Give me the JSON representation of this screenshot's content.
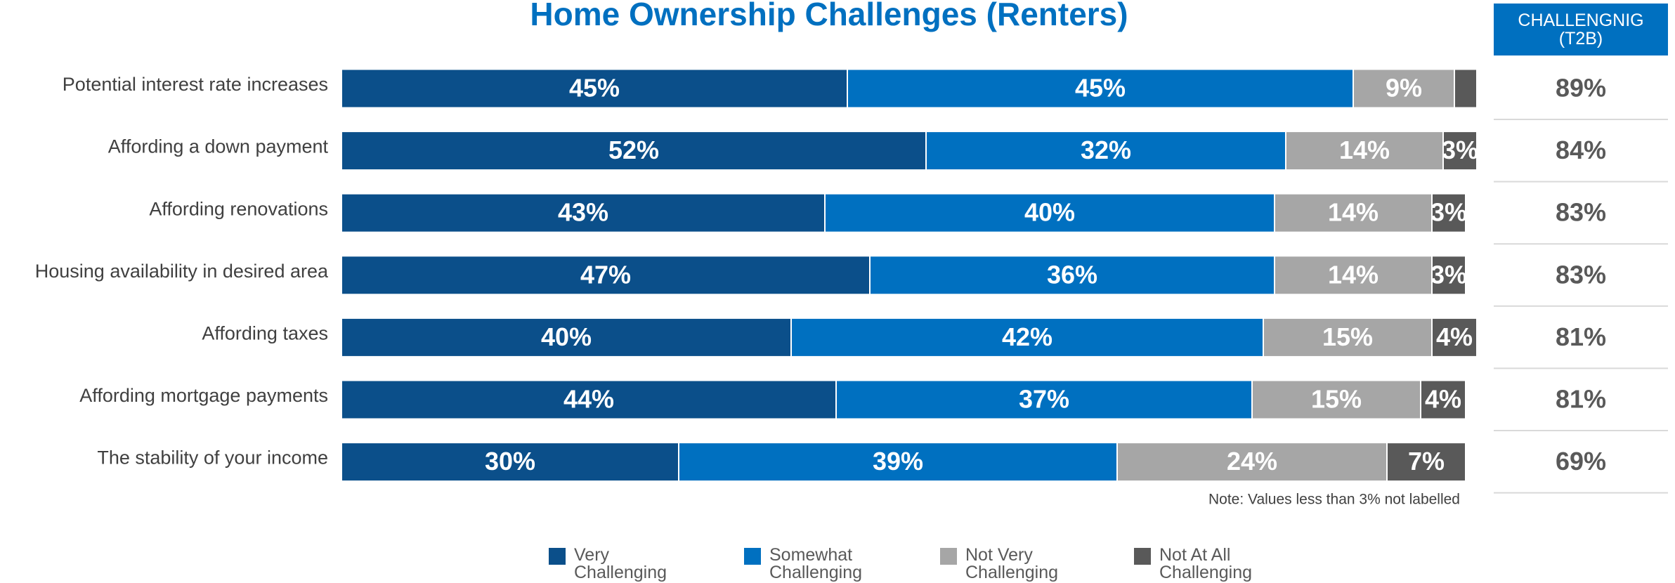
{
  "chart_data": {
    "type": "stacked_barh",
    "title": "Home Ownership Challenges (Renters)",
    "categories": [
      "Potential interest rate increases",
      "Affording a down payment",
      "Affording renovations",
      "Housing availability in desired area",
      "Affording taxes",
      "Affording mortgage payments",
      "The stability of your income"
    ],
    "series": [
      {
        "name": "Very Challenging",
        "color": "#0b4f8a",
        "values": [
          45,
          52,
          43,
          47,
          40,
          44,
          30
        ],
        "value_labels": [
          "45%",
          "52%",
          "43%",
          "47%",
          "40%",
          "44%",
          "30%"
        ]
      },
      {
        "name": "Somewhat Challenging",
        "color": "#0070c0",
        "values": [
          45,
          32,
          40,
          36,
          42,
          37,
          39
        ],
        "value_labels": [
          "45%",
          "32%",
          "40%",
          "36%",
          "42%",
          "37%",
          "39%"
        ]
      },
      {
        "name": "Not Very Challenging",
        "color": "#a6a6a6",
        "values": [
          9,
          14,
          14,
          14,
          15,
          15,
          24
        ],
        "value_labels": [
          "9%",
          "14%",
          "14%",
          "14%",
          "15%",
          "15%",
          "24%"
        ]
      },
      {
        "name": "Not At All Challenging",
        "color": "#595959",
        "values": [
          2,
          3,
          3,
          3,
          4,
          4,
          7
        ],
        "value_labels": [
          null,
          "3%",
          "3%",
          "3%",
          "4%",
          "4%",
          "7%"
        ]
      }
    ],
    "xlim": [
      0,
      100
    ],
    "note": "Note: Values less than 3% not labelled",
    "t2b": {
      "header": "CHALLENGNIG (T2B)",
      "values": [
        89,
        84,
        83,
        83,
        81,
        81,
        69
      ],
      "value_labels": [
        "89%",
        "84%",
        "83%",
        "83%",
        "81%",
        "81%",
        "69%"
      ]
    }
  }
}
